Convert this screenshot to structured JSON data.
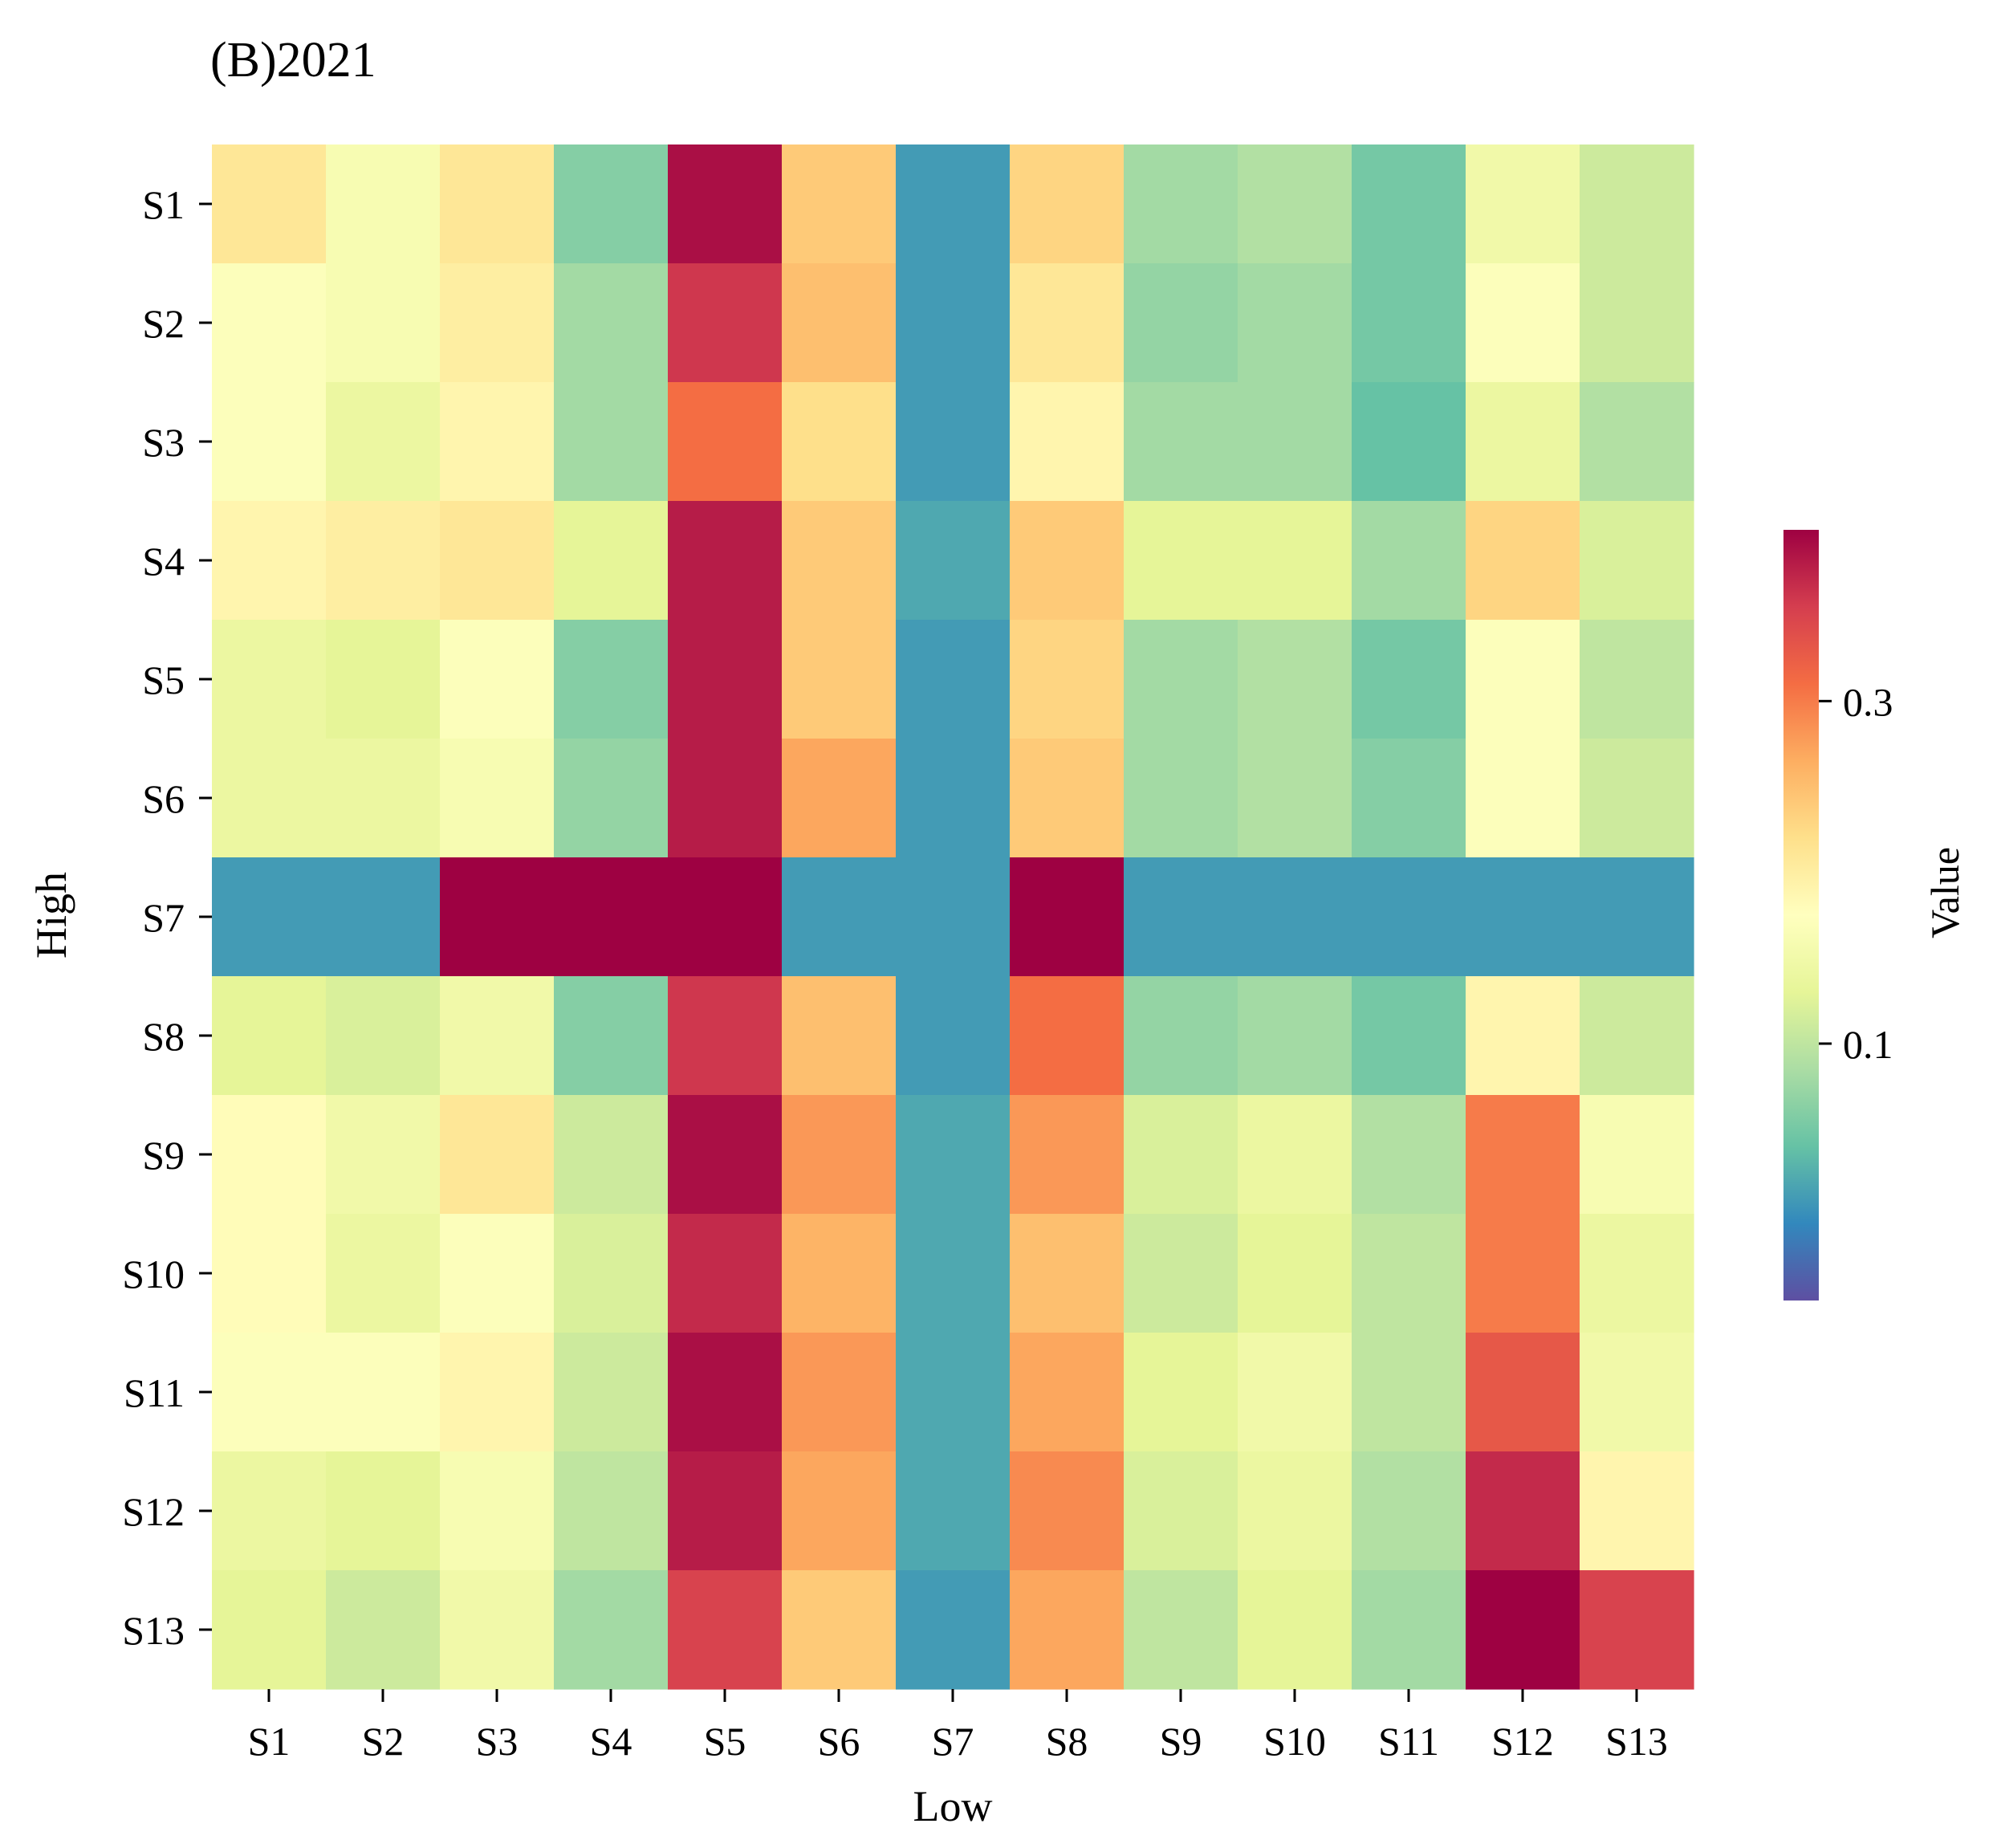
{
  "chart_data": {
    "type": "heatmap",
    "title": "(B)2021",
    "xlabel": "Low",
    "ylabel": "High",
    "x_categories": [
      "S1",
      "S2",
      "S3",
      "S4",
      "S5",
      "S6",
      "S7",
      "S8",
      "S9",
      "S10",
      "S11",
      "S12",
      "S13"
    ],
    "y_categories": [
      "S1",
      "S2",
      "S3",
      "S4",
      "S5",
      "S6",
      "S7",
      "S8",
      "S9",
      "S10",
      "S11",
      "S12",
      "S13"
    ],
    "colorbar": {
      "label": "Value",
      "range": [
        -0.05,
        0.4
      ],
      "ticks": [
        0.1,
        0.3
      ],
      "tick_labels": [
        "0.1",
        "0.3"
      ],
      "colormap": "Spectral_r"
    },
    "values": [
      [
        0.21,
        0.16,
        0.21,
        0.06,
        0.39,
        0.24,
        0.01,
        0.23,
        0.08,
        0.09,
        0.05,
        0.15,
        0.11
      ],
      [
        0.17,
        0.16,
        0.2,
        0.08,
        0.36,
        0.25,
        0.01,
        0.21,
        0.07,
        0.08,
        0.05,
        0.17,
        0.11
      ],
      [
        0.17,
        0.14,
        0.19,
        0.08,
        0.31,
        0.22,
        0.01,
        0.19,
        0.08,
        0.08,
        0.04,
        0.14,
        0.09
      ],
      [
        0.19,
        0.2,
        0.21,
        0.13,
        0.38,
        0.24,
        0.02,
        0.24,
        0.13,
        0.13,
        0.08,
        0.23,
        0.12
      ],
      [
        0.14,
        0.13,
        0.17,
        0.06,
        0.38,
        0.24,
        0.01,
        0.23,
        0.08,
        0.09,
        0.05,
        0.17,
        0.1
      ],
      [
        0.14,
        0.14,
        0.16,
        0.07,
        0.38,
        0.27,
        0.01,
        0.24,
        0.08,
        0.09,
        0.06,
        0.17,
        0.11
      ],
      [
        0.01,
        0.01,
        0.4,
        0.4,
        0.4,
        0.01,
        0.01,
        0.4,
        0.01,
        0.01,
        0.01,
        0.01,
        0.01
      ],
      [
        0.13,
        0.12,
        0.15,
        0.06,
        0.36,
        0.25,
        0.01,
        0.31,
        0.07,
        0.08,
        0.05,
        0.19,
        0.11
      ],
      [
        0.18,
        0.15,
        0.21,
        0.11,
        0.39,
        0.28,
        0.02,
        0.28,
        0.12,
        0.14,
        0.09,
        0.3,
        0.16
      ],
      [
        0.18,
        0.14,
        0.17,
        0.12,
        0.37,
        0.26,
        0.02,
        0.25,
        0.11,
        0.13,
        0.1,
        0.3,
        0.14
      ],
      [
        0.17,
        0.17,
        0.19,
        0.11,
        0.39,
        0.28,
        0.02,
        0.27,
        0.13,
        0.15,
        0.1,
        0.33,
        0.15
      ],
      [
        0.14,
        0.13,
        0.16,
        0.1,
        0.38,
        0.27,
        0.02,
        0.29,
        0.12,
        0.14,
        0.09,
        0.37,
        0.19
      ],
      [
        0.13,
        0.11,
        0.15,
        0.08,
        0.35,
        0.24,
        0.01,
        0.27,
        0.1,
        0.13,
        0.08,
        0.4,
        0.35
      ]
    ]
  }
}
